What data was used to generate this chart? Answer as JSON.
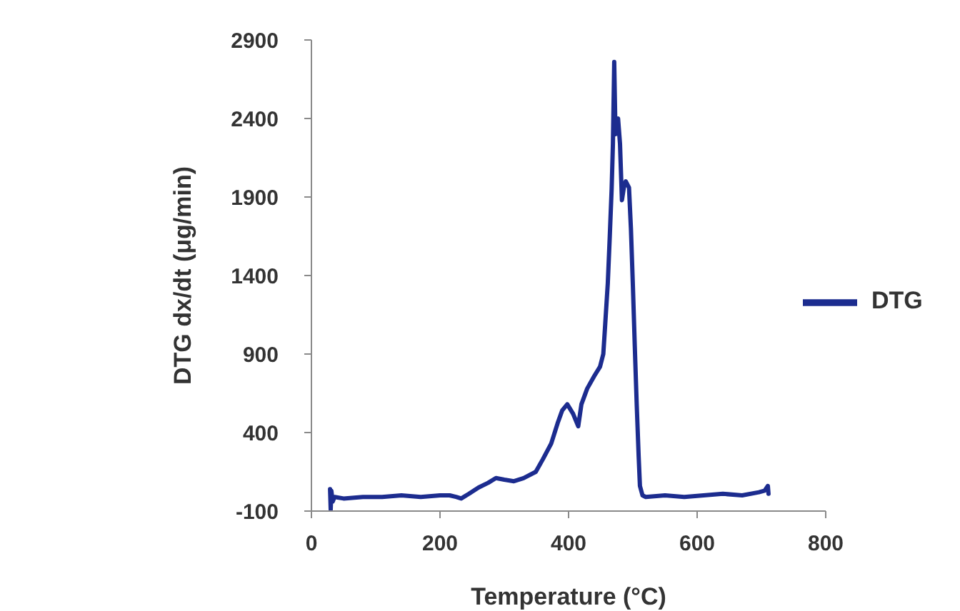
{
  "chart_data": {
    "type": "line",
    "xlabel": "Temperature (°C)",
    "ylabel": "DTG dx/dt (μg/min)",
    "xlim": [
      0,
      800
    ],
    "xticks": [
      0,
      200,
      400,
      600,
      800
    ],
    "ylim": [
      -100,
      2900
    ],
    "yticks": [
      -100,
      400,
      900,
      1400,
      1900,
      2400,
      2900
    ],
    "grid": false,
    "legend": "right",
    "marker": "none",
    "line_style": "solid",
    "x": [
      29,
      30,
      31,
      33,
      36,
      50,
      80,
      110,
      140,
      170,
      200,
      215,
      225,
      233,
      245,
      260,
      275,
      287,
      300,
      315,
      330,
      349,
      360,
      373,
      383,
      390,
      398,
      407,
      415,
      420,
      429,
      440,
      449,
      454,
      457,
      461,
      464,
      467,
      469,
      471,
      473,
      475,
      477,
      480,
      483,
      486,
      489,
      494,
      497,
      500,
      503,
      506,
      509,
      511,
      515,
      520,
      550,
      580,
      610,
      640,
      670,
      696,
      705,
      710,
      711
    ],
    "series": [
      {
        "name": "DTG",
        "color": "#1c2c8f",
        "values": [
          40,
          -90,
          30,
          -40,
          -10,
          -20,
          -10,
          -10,
          0,
          -10,
          0,
          0,
          -10,
          -20,
          10,
          50,
          80,
          110,
          100,
          90,
          110,
          150,
          230,
          330,
          460,
          540,
          580,
          520,
          440,
          580,
          680,
          760,
          820,
          900,
          1090,
          1350,
          1640,
          1950,
          2240,
          2760,
          2300,
          2380,
          2400,
          2240,
          1880,
          1960,
          2000,
          1960,
          1700,
          1340,
          950,
          580,
          250,
          60,
          0,
          -10,
          0,
          -10,
          0,
          10,
          0,
          20,
          30,
          60,
          10
        ]
      }
    ]
  }
}
